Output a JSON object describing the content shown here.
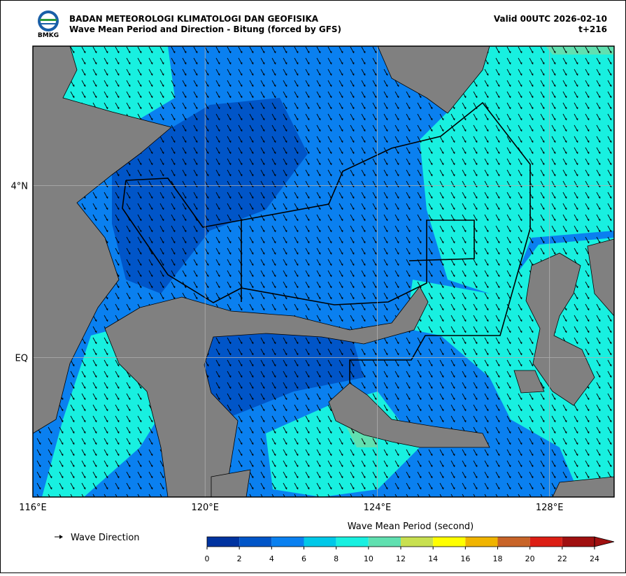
{
  "header": {
    "title": "BADAN METEOROLOGI KLIMATOLOGI DAN GEOFISIKA",
    "subtitle": "Wave Mean Period and Direction - Bitung (forced by GFS)",
    "valid": "Valid 00UTC 2026-02-10",
    "lead": "t+216",
    "logo": "BMKG"
  },
  "map": {
    "lonlim": [
      116,
      129.5
    ],
    "latlim": [
      -3.25,
      7.25
    ],
    "xticks": [
      {
        "value": 116,
        "label": "116°E"
      },
      {
        "value": 120,
        "label": "120°E"
      },
      {
        "value": 124,
        "label": "124°E"
      },
      {
        "value": 128,
        "label": "128°E"
      }
    ],
    "yticks": [
      {
        "value": 4,
        "label": "4°N"
      },
      {
        "value": 0,
        "label": "EQ"
      }
    ],
    "grid": true
  },
  "legend": {
    "direction": "Wave Direction",
    "colorbar": {
      "title": "Wave Mean Period (second)",
      "ticks": [
        0,
        2,
        4,
        6,
        8,
        10,
        12,
        14,
        16,
        18,
        20,
        22,
        24
      ],
      "colors": [
        "#0033a0",
        "#0055c8",
        "#0a80f0",
        "#00c8e8",
        "#18f0e0",
        "#60e0b0",
        "#c8e050",
        "#ffff00",
        "#f0b400",
        "#c86428",
        "#dc1e14",
        "#a01010"
      ]
    }
  }
}
